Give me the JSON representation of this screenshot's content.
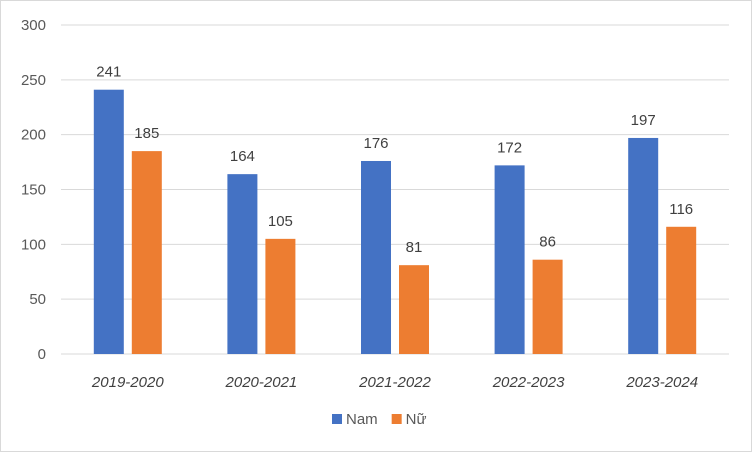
{
  "chart_data": {
    "type": "bar",
    "categories": [
      "2019-2020",
      "2020-2021",
      "2021-2022",
      "2022-2023",
      "2023-2024"
    ],
    "series": [
      {
        "name": "Nam",
        "values": [
          241,
          164,
          176,
          172,
          197
        ],
        "color": "#4472C4"
      },
      {
        "name": "Nữ",
        "values": [
          185,
          105,
          81,
          86,
          116
        ],
        "color": "#ED7D31"
      }
    ],
    "ylim": [
      0,
      300
    ],
    "yticks": [
      0,
      50,
      100,
      150,
      200,
      250,
      300
    ],
    "grid": true,
    "gridColor": "#d9d9d9",
    "legend_position": "bottom",
    "data_labels": true
  }
}
